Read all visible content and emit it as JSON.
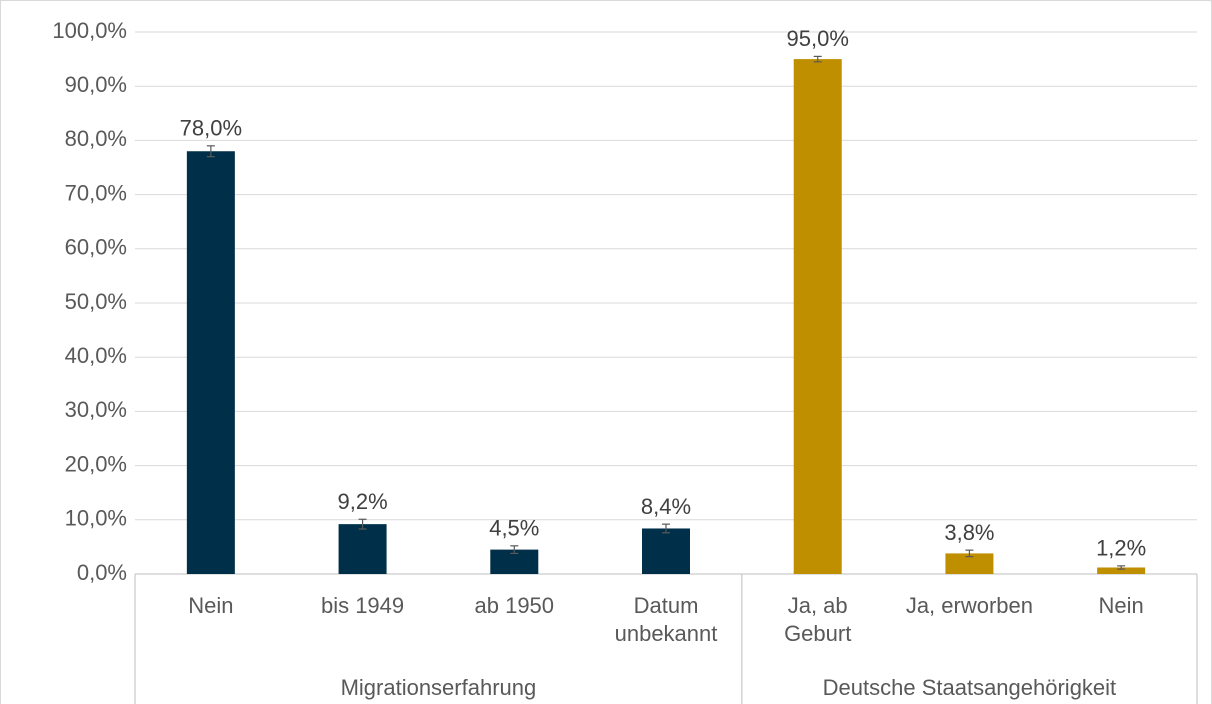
{
  "chart_data": {
    "type": "bar",
    "groups": [
      {
        "name": "Migrationserfahrung",
        "color": "#003049",
        "categories": [
          "Nein",
          "bis 1949",
          "ab 1950",
          "Datum unbekannt"
        ],
        "values": [
          78.0,
          9.2,
          4.5,
          8.4
        ],
        "errors": [
          1.0,
          0.9,
          0.7,
          0.8
        ],
        "value_labels": [
          "78,0%",
          "9,2%",
          "4,5%",
          "8,4%"
        ]
      },
      {
        "name": "Deutsche Staatsangehörigkeit",
        "color": "#bf8f00",
        "categories": [
          "Ja, ab Geburt",
          "Ja, erworben",
          "Nein"
        ],
        "values": [
          95.0,
          3.8,
          1.2
        ],
        "errors": [
          0.5,
          0.6,
          0.3
        ],
        "value_labels": [
          "95,0%",
          "3,8%",
          "1,2%"
        ]
      }
    ],
    "ylim": [
      0,
      100
    ],
    "yticks": [
      {
        "value": 0,
        "label": "0,0%"
      },
      {
        "value": 10,
        "label": "10,0%"
      },
      {
        "value": 20,
        "label": "20,0%"
      },
      {
        "value": 30,
        "label": "30,0%"
      },
      {
        "value": 40,
        "label": "40,0%"
      },
      {
        "value": 50,
        "label": "50,0%"
      },
      {
        "value": 60,
        "label": "60,0%"
      },
      {
        "value": 70,
        "label": "70,0%"
      },
      {
        "value": 80,
        "label": "80,0%"
      },
      {
        "value": 90,
        "label": "90,0%"
      },
      {
        "value": 100,
        "label": "100,0%"
      }
    ],
    "grid": true
  }
}
